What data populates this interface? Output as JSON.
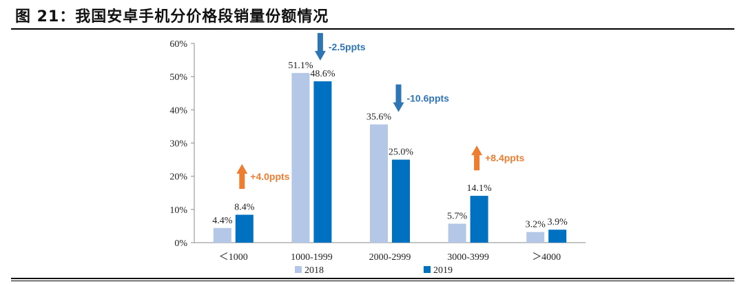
{
  "title": "图 21：我国安卓手机分价格段销量份额情况",
  "chart_data": {
    "type": "bar",
    "title": "",
    "xlabel": "",
    "ylabel": "",
    "categories": [
      "＜1000",
      "1000-1999",
      "2000-2999",
      "3000-3999",
      "＞4000"
    ],
    "series": [
      {
        "name": "2018",
        "values": [
          4.4,
          51.1,
          35.6,
          5.7,
          3.2
        ],
        "color": "#b4c7e7"
      },
      {
        "name": "2019",
        "values": [
          8.4,
          48.6,
          25.0,
          14.1,
          3.9
        ],
        "color": "#0070c0"
      }
    ],
    "data_labels": [
      [
        "4.4%",
        "51.1%",
        "35.6%",
        "5.7%",
        "3.2%"
      ],
      [
        "8.4%",
        "48.6%",
        "25.0%",
        "14.1%",
        "3.9%"
      ]
    ],
    "ylim": [
      0,
      60
    ],
    "yticks": [
      "0%",
      "10%",
      "20%",
      "30%",
      "40%",
      "50%",
      "60%"
    ],
    "grid": false,
    "legend": "bottom",
    "annotations": [
      {
        "category": "＜1000",
        "text": "+4.0ppts",
        "direction": "up",
        "color": "#ed7d31"
      },
      {
        "category": "1000-1999",
        "text": "-2.5ppts",
        "direction": "down",
        "color": "#2e75b6"
      },
      {
        "category": "2000-2999",
        "text": "-10.6ppts",
        "direction": "down",
        "color": "#2e75b6"
      },
      {
        "category": "3000-3999",
        "text": "+8.4ppts",
        "direction": "up",
        "color": "#ed7d31"
      }
    ]
  }
}
